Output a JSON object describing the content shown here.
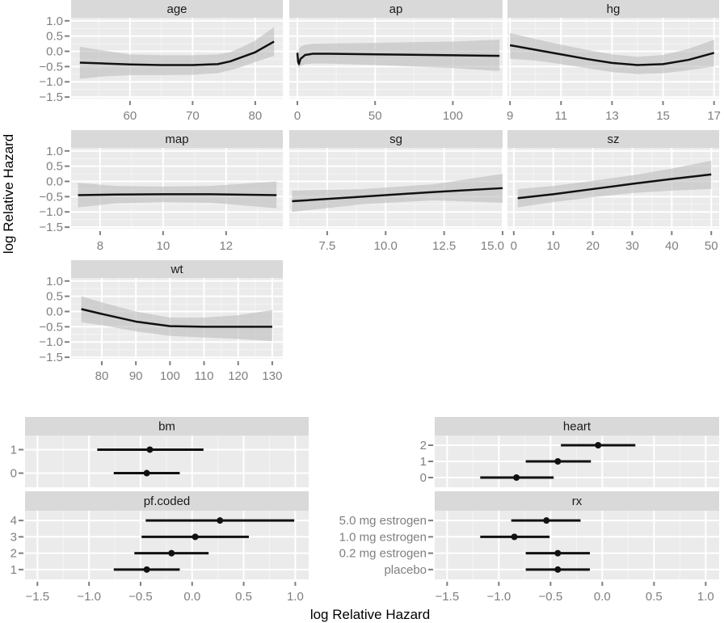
{
  "chart_data": [
    {
      "type": "line",
      "ylabel": "log Relative Hazard",
      "ylim": [
        -1.55,
        1.1
      ],
      "yticks": [
        1.0,
        0.5,
        0.0,
        -0.5,
        -1.0,
        -1.5
      ],
      "ytick_labels": [
        "1.0",
        "0.5",
        "0.0",
        "−0.5",
        "−1.0",
        "−1.5"
      ],
      "grid": true,
      "facets": [
        {
          "title": "age",
          "xlim": [
            50.6,
            84.4
          ],
          "xticks": [
            60,
            70,
            80
          ],
          "xtick_labels": [
            "60",
            "70",
            "80"
          ],
          "x": [
            52,
            56,
            60,
            65,
            70,
            74,
            76,
            78,
            80,
            83
          ],
          "y": [
            -0.37,
            -0.4,
            -0.43,
            -0.45,
            -0.45,
            -0.42,
            -0.33,
            -0.18,
            -0.03,
            0.32
          ],
          "lower": [
            -0.9,
            -0.82,
            -0.78,
            -0.78,
            -0.77,
            -0.72,
            -0.62,
            -0.5,
            -0.35,
            -0.15
          ],
          "upper": [
            0.15,
            0.02,
            -0.1,
            -0.13,
            -0.13,
            -0.1,
            -0.03,
            0.15,
            0.35,
            0.8
          ]
        },
        {
          "title": "ap",
          "xlim": [
            -5.2,
            132
          ],
          "xticks": [
            0,
            50,
            100
          ],
          "xtick_labels": [
            "0",
            "50",
            "100"
          ],
          "x": [
            0,
            0.5,
            1,
            2,
            5,
            10,
            20,
            50,
            100,
            130
          ],
          "y": [
            -0.05,
            -0.35,
            -0.42,
            -0.25,
            -0.12,
            -0.08,
            -0.08,
            -0.1,
            -0.13,
            -0.15
          ],
          "lower": [
            -0.2,
            -0.5,
            -0.55,
            -0.48,
            -0.42,
            -0.4,
            -0.4,
            -0.45,
            -0.55,
            -0.65
          ],
          "upper": [
            0.1,
            -0.1,
            0.05,
            0.15,
            0.22,
            0.25,
            0.26,
            0.28,
            0.32,
            0.38
          ]
        },
        {
          "title": "hg",
          "xlim": [
            8.9,
            17.2
          ],
          "xticks": [
            9,
            11,
            13,
            15,
            17
          ],
          "xtick_labels": [
            "9",
            "11",
            "13",
            "15",
            "17"
          ],
          "x": [
            9,
            10,
            11,
            12,
            13,
            14,
            15,
            16,
            17
          ],
          "y": [
            0.2,
            0.05,
            -0.1,
            -0.25,
            -0.38,
            -0.45,
            -0.42,
            -0.28,
            -0.05
          ],
          "lower": [
            -0.25,
            -0.3,
            -0.42,
            -0.55,
            -0.68,
            -0.75,
            -0.72,
            -0.62,
            -0.5
          ],
          "upper": [
            0.6,
            0.4,
            0.22,
            0.05,
            -0.1,
            -0.18,
            -0.12,
            0.08,
            0.38
          ]
        },
        {
          "title": "map",
          "xlim": [
            7.08,
            13.8
          ],
          "xticks": [
            8,
            10,
            12
          ],
          "xtick_labels": [
            "8",
            "10",
            "12"
          ],
          "x": [
            7.3,
            8.5,
            10,
            11.5,
            13.6
          ],
          "y": [
            -0.45,
            -0.43,
            -0.42,
            -0.42,
            -0.45
          ],
          "lower": [
            -0.85,
            -0.72,
            -0.68,
            -0.7,
            -0.88
          ],
          "upper": [
            -0.05,
            -0.15,
            -0.17,
            -0.15,
            0.0
          ]
        },
        {
          "title": "sg",
          "xlim": [
            5.88,
            15.0
          ],
          "xticks": [
            7.5,
            10.0,
            12.5,
            15.0
          ],
          "xtick_labels": [
            "7.5",
            "10.0",
            "12.5",
            "15.0"
          ],
          "x": [
            6,
            9,
            12,
            15
          ],
          "y": [
            -0.65,
            -0.5,
            -0.35,
            -0.22
          ],
          "lower": [
            -1.0,
            -0.75,
            -0.62,
            -0.7
          ],
          "upper": [
            -0.3,
            -0.25,
            -0.1,
            0.25
          ]
        },
        {
          "title": "sz",
          "xlim": [
            -1.6,
            52
          ],
          "xticks": [
            0,
            10,
            20,
            30,
            40,
            50
          ],
          "xtick_labels": [
            "0",
            "10",
            "20",
            "30",
            "40",
            "50"
          ],
          "x": [
            1,
            10,
            20,
            30,
            40,
            50
          ],
          "y": [
            -0.55,
            -0.42,
            -0.25,
            -0.08,
            0.08,
            0.23
          ],
          "lower": [
            -0.85,
            -0.68,
            -0.52,
            -0.38,
            -0.3,
            -0.25
          ],
          "upper": [
            -0.25,
            -0.15,
            0.02,
            0.2,
            0.42,
            0.68
          ]
        },
        {
          "title": "wt",
          "xlim": [
            71,
            133.1
          ],
          "xticks": [
            80,
            90,
            100,
            110,
            120,
            130
          ],
          "xtick_labels": [
            "80",
            "90",
            "100",
            "110",
            "120",
            "130"
          ],
          "x": [
            74,
            80,
            90,
            100,
            110,
            120,
            130
          ],
          "y": [
            0.08,
            -0.08,
            -0.33,
            -0.48,
            -0.5,
            -0.5,
            -0.5
          ],
          "lower": [
            -0.35,
            -0.45,
            -0.65,
            -0.8,
            -0.85,
            -0.9,
            -0.97
          ],
          "upper": [
            0.5,
            0.3,
            0.0,
            -0.2,
            -0.2,
            -0.12,
            0.05
          ]
        }
      ]
    },
    {
      "type": "scatter",
      "xlabel": "log Relative Hazard",
      "xlim": [
        -1.62,
        1.13
      ],
      "xticks": [
        -1.5,
        -1.0,
        -0.5,
        0.0,
        0.5,
        1.0
      ],
      "xtick_labels": [
        "−1.5",
        "−1.0",
        "−0.5",
        "0.0",
        "0.5",
        "1.0"
      ],
      "grid": true,
      "facets": [
        {
          "title": "bm",
          "levels": [
            "0",
            "1"
          ],
          "estimate": [
            -0.44,
            -0.41
          ],
          "lower": [
            -0.76,
            -0.92
          ],
          "upper": [
            -0.12,
            0.11
          ]
        },
        {
          "title": "heart",
          "levels": [
            "0",
            "1",
            "2"
          ],
          "estimate": [
            -0.83,
            -0.43,
            -0.04
          ],
          "lower": [
            -1.18,
            -0.74,
            -0.4
          ],
          "upper": [
            -0.47,
            -0.11,
            0.32
          ]
        },
        {
          "title": "pf.coded",
          "levels": [
            "1",
            "2",
            "3",
            "4"
          ],
          "estimate": [
            -0.44,
            -0.2,
            0.03,
            0.27
          ],
          "lower": [
            -0.76,
            -0.56,
            -0.49,
            -0.45
          ],
          "upper": [
            -0.12,
            0.16,
            0.55,
            0.99
          ]
        },
        {
          "title": "rx",
          "levels": [
            "placebo",
            "0.2 mg estrogen",
            "1.0 mg estrogen",
            "5.0 mg estrogen"
          ],
          "estimate": [
            -0.43,
            -0.43,
            -0.85,
            -0.54
          ],
          "lower": [
            -0.74,
            -0.74,
            -1.18,
            -0.88
          ],
          "upper": [
            -0.12,
            -0.12,
            -0.51,
            -0.21
          ]
        }
      ]
    }
  ],
  "colors": {
    "panel": "#ebebeb",
    "strip": "#d9d9d9",
    "band": "#bdbdbd",
    "line": "#111111",
    "tick": "#7f7f7f"
  }
}
